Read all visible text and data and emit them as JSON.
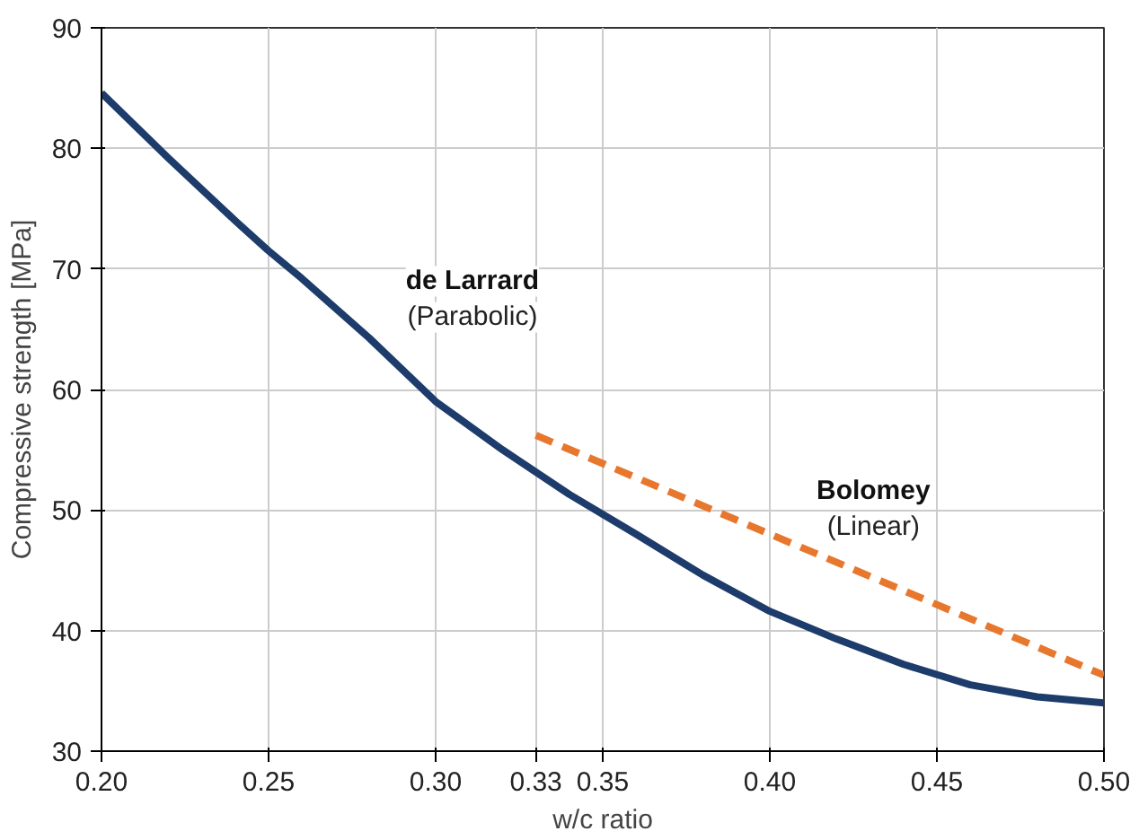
{
  "chart_data": {
    "type": "line",
    "xlabel": "w/c ratio",
    "ylabel": "Compressive strength [MPa]",
    "xlim": [
      0.2,
      0.5
    ],
    "ylim": [
      30,
      90
    ],
    "xticks": [
      {
        "value": 0.2,
        "label": "0.20"
      },
      0.25,
      {
        "value": 0.3,
        "label": "0.30"
      },
      0.33,
      0.35,
      {
        "value": 0.4,
        "label": "0.40"
      },
      0.45,
      {
        "value": 0.5,
        "label": "0.50"
      }
    ],
    "yticks": [
      30,
      40,
      50,
      60,
      70,
      80,
      90
    ],
    "grid": true,
    "line_style": "solid",
    "series": [
      {
        "name": "de Larrard",
        "color": "#1d3c6b",
        "x": [
          0.2,
          0.22,
          0.24,
          0.25,
          0.26,
          0.28,
          0.3,
          0.32,
          0.34,
          0.36,
          0.38,
          0.4,
          0.42,
          0.44,
          0.46,
          0.48,
          0.5
        ],
        "values": [
          84.6,
          79.2,
          74.0,
          71.5,
          69.2,
          64.3,
          59.0,
          55.0,
          51.3,
          48.0,
          44.6,
          41.6,
          39.3,
          37.2,
          35.5,
          34.5,
          34.0
        ]
      },
      {
        "name": "Bolomey",
        "color": "#e8772e",
        "line_style": "dashed",
        "x": [
          0.33,
          0.5
        ],
        "values": [
          56.2,
          36.3
        ]
      }
    ],
    "annotations": [
      "(Parabolic)",
      "(Linear)"
    ]
  }
}
